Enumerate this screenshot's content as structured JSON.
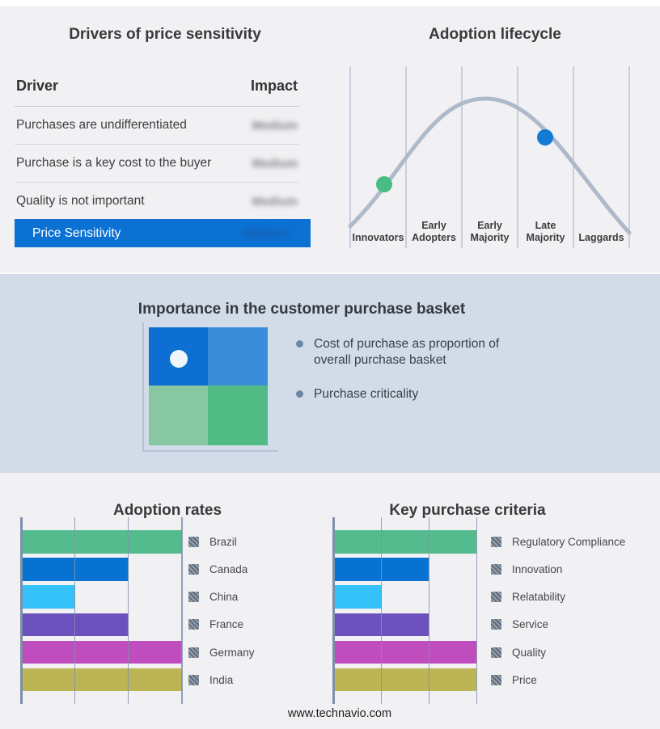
{
  "drivers_panel": {
    "title": "Drivers of price sensitivity",
    "columns": {
      "driver": "Driver",
      "impact": "Impact"
    },
    "rows": [
      {
        "driver": "Purchases are undifferentiated",
        "impact": "Medium"
      },
      {
        "driver": "Purchase is a key cost to the buyer",
        "impact": "Medium"
      },
      {
        "driver": "Quality is not important",
        "impact": "Medium"
      }
    ],
    "highlight_row": {
      "driver": "Price Sensitivity",
      "impact": "Medium"
    },
    "highlight_color": "#0b72d4"
  },
  "basket_panel": {
    "title": "Importance in the customer purchase basket",
    "bullets": [
      "Cost of purchase as proportion of overall purchase basket",
      "Purchase criticality"
    ],
    "matrix": {
      "top_left": "#0c6fd1",
      "top_right": "#3a8ed9",
      "bottom_left": "#87c8a3",
      "bottom_right": "#50bb84",
      "dot_color": "#eef5fb"
    }
  },
  "footer": {
    "url": "www.technavio.com"
  },
  "chart_data": [
    {
      "type": "line",
      "subtype": "bell-curve",
      "title": "Adoption lifecycle",
      "x_categories": [
        "Innovators",
        "Early Adopters",
        "Early Majority",
        "Late Majority",
        "Laggards"
      ],
      "curve_color": "#aeb9ca",
      "grid": "vertical-only",
      "legend": "none",
      "annotations": [
        {
          "label": "green-dot",
          "x": "Innovators",
          "side": "rising-slope",
          "color": "#47bc85"
        },
        {
          "label": "blue-dot",
          "x": "Late Majority",
          "side": "falling-slope",
          "color": "#147bd4"
        }
      ]
    },
    {
      "type": "bar",
      "orientation": "horizontal",
      "title": "Adoption rates",
      "categories": [
        "Brazil",
        "Canada",
        "China",
        "France",
        "Germany",
        "India"
      ],
      "values": [
        3,
        2,
        1,
        2,
        3,
        3
      ],
      "xlim": [
        0,
        3
      ],
      "grid": "vertical-only",
      "legend_position": "right",
      "colors": [
        "#53bb8d",
        "#0673d1",
        "#35c1f9",
        "#6b51bd",
        "#bf4dbd",
        "#bcb455"
      ]
    },
    {
      "type": "bar",
      "orientation": "horizontal",
      "title": "Key purchase criteria",
      "categories": [
        "Regulatory Compliance",
        "Innovation",
        "Relatability",
        "Service",
        "Quality",
        "Price"
      ],
      "values": [
        3,
        2,
        1,
        2,
        3,
        3
      ],
      "xlim": [
        0,
        3
      ],
      "grid": "vertical-only",
      "legend_position": "right",
      "colors": [
        "#53bb8d",
        "#0673d1",
        "#35c1f9",
        "#6b51bd",
        "#bf4dbd",
        "#bcb455"
      ]
    }
  ]
}
